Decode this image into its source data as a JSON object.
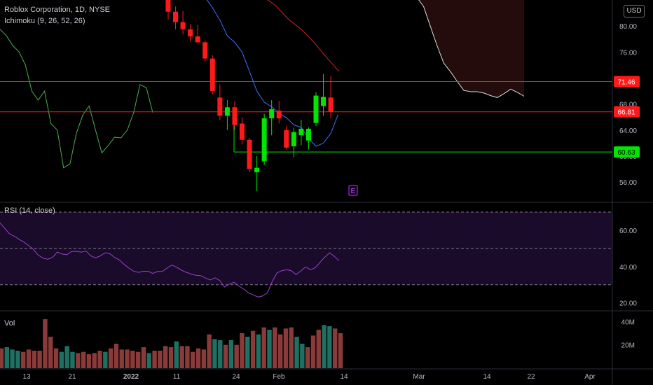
{
  "header": {
    "title": "Roblox Corporation, 1D, NYSE",
    "ichimoku": "Ichimoku (9, 26, 52, 26)",
    "currency": "USD"
  },
  "panes": {
    "rsi_label": "RSI (14, close)",
    "vol_label": "Vol"
  },
  "earnings_marker": "E",
  "colors": {
    "up": "#00e600",
    "down": "#ff1a1a",
    "vol_up": "#1e7063",
    "vol_down": "#8b3a3a",
    "rsi": "#9c3fd0",
    "lagging": "#4caf50",
    "conversion": "#3f6fff",
    "spanB": "#c62828",
    "spanA": "#dcdcdc"
  },
  "chart_data": {
    "type": "candlestick",
    "price_axis": {
      "ticks": [
        56,
        60,
        64,
        68,
        76,
        80
      ],
      "tick_labels": [
        "56.00",
        "60.00",
        "64.00",
        "68.00",
        "76.00",
        "80.00"
      ],
      "ylim": [
        53,
        84
      ]
    },
    "price_labels": [
      {
        "value": 71.46,
        "label": "71.46",
        "color": "#ff1a1a"
      },
      {
        "value": 66.81,
        "label": "66.81",
        "color": "#ff1a1a"
      },
      {
        "value": 60.63,
        "label": "60.63",
        "color": "#00e600"
      }
    ],
    "x_axis_labels": [
      "13",
      "21",
      "2022",
      "11",
      "24",
      "Feb",
      "14",
      "Mar",
      "14",
      "22",
      "Apr"
    ],
    "candles": [
      {
        "o": 84,
        "h": 87,
        "l": 81,
        "c": 82.2
      },
      {
        "o": 82.2,
        "h": 83,
        "l": 79.5,
        "c": 80.6
      },
      {
        "o": 80.6,
        "h": 82.3,
        "l": 78.7,
        "c": 79.5
      },
      {
        "o": 79.5,
        "h": 80.3,
        "l": 77.6,
        "c": 78.4
      },
      {
        "o": 78.4,
        "h": 80.2,
        "l": 77.4,
        "c": 77.5
      },
      {
        "o": 77.5,
        "h": 77.8,
        "l": 74.5,
        "c": 75
      },
      {
        "o": 75,
        "h": 75.5,
        "l": 69.5,
        "c": 70
      },
      {
        "o": 69,
        "h": 71,
        "l": 65.5,
        "c": 66.2
      },
      {
        "o": 66.2,
        "h": 68.6,
        "l": 64,
        "c": 67.5
      },
      {
        "o": 67.5,
        "h": 68.4,
        "l": 64,
        "c": 64.8
      },
      {
        "o": 65,
        "h": 66,
        "l": 61.8,
        "c": 62.5
      },
      {
        "o": 62.5,
        "h": 62.8,
        "l": 57.5,
        "c": 58
      },
      {
        "o": 57.5,
        "h": 60,
        "l": 54.6,
        "c": 58.2
      },
      {
        "o": 59.2,
        "h": 66.5,
        "l": 58.6,
        "c": 65.8
      },
      {
        "o": 65.8,
        "h": 68.6,
        "l": 63.2,
        "c": 67.2
      },
      {
        "o": 67,
        "h": 68.5,
        "l": 65,
        "c": 65.8
      },
      {
        "o": 64,
        "h": 64.6,
        "l": 61,
        "c": 61.3
      },
      {
        "o": 61.5,
        "h": 64.3,
        "l": 59.8,
        "c": 63.7
      },
      {
        "o": 63.2,
        "h": 65.6,
        "l": 61.7,
        "c": 64.2
      },
      {
        "o": 62.4,
        "h": 64.4,
        "l": 61,
        "c": 64.2
      },
      {
        "o": 65.1,
        "h": 69.8,
        "l": 64.6,
        "c": 69.3
      },
      {
        "o": 67.7,
        "h": 72.6,
        "l": 66.2,
        "c": 69.1
      },
      {
        "o": 69,
        "h": 72.3,
        "l": 65.8,
        "c": 66.8
      }
    ],
    "ichimoku": {
      "lagging_span": [
        79.5,
        78.5,
        77,
        76,
        74,
        70,
        68.6,
        70,
        65,
        64,
        58.2,
        58.8,
        63.5,
        66.3,
        67.7,
        64,
        60.5,
        61.6,
        62.9,
        62.8,
        64,
        66.7,
        71,
        70.5,
        66.7
      ],
      "conversion_line": [
        null,
        null,
        null,
        null,
        null,
        84.4,
        82.8,
        80.9,
        78.5,
        77.5,
        76,
        73,
        70,
        68.3,
        67.6,
        66.6,
        65.9,
        64.8,
        64.4,
        62.7,
        61.5,
        62,
        63.5,
        66.4
      ],
      "span_b_red": [
        84.5,
        83.1,
        81,
        79.5,
        77.5,
        75.2,
        73
      ],
      "span_a_forward": [
        84.4,
        83,
        80,
        77,
        74.3,
        73,
        71.5,
        70.1,
        69.9,
        69.9,
        69.7,
        69.3,
        69,
        69.6,
        70.3,
        69.8,
        69.2
      ]
    },
    "rsi": {
      "values": [
        64,
        61,
        58,
        56.7,
        55,
        53.5,
        51.5,
        49.4,
        46.3,
        44.6,
        44,
        45,
        48,
        46.9,
        46.5,
        48.3,
        48.4,
        47.9,
        48.6,
        45.9,
        44.8,
        45.9,
        47.6,
        47.1,
        45,
        43.6,
        41.2,
        39.1,
        37.4,
        36.8,
        37.4,
        37.4,
        36.2,
        37.3,
        37.3,
        39.2,
        40.8,
        39.6,
        38,
        36.8,
        35.9,
        35.2,
        35,
        33.7,
        32.6,
        33.8,
        32.3,
        28.7,
        30.4,
        31.3,
        29.3,
        27.6,
        25.5,
        24.4,
        23.2,
        23.8,
        25.5,
        31.8,
        36.5,
        37.7,
        38.2,
        37.7,
        35.5,
        37.6,
        39.8,
        38.3,
        39.3,
        42.3,
        45.2,
        47.6,
        45.6,
        43.1
      ],
      "levels": [
        70,
        50,
        30
      ],
      "tick_labels": [
        "20.00",
        "40.00",
        "60.00"
      ],
      "ylim": [
        16,
        75
      ]
    },
    "volume": {
      "values": [
        17,
        18,
        16,
        15,
        14,
        16,
        15,
        15,
        42,
        27,
        17,
        14,
        19,
        14,
        13,
        14,
        12,
        13,
        15,
        14,
        17,
        21,
        16,
        16,
        15,
        14,
        18,
        13,
        15,
        15,
        19,
        18,
        23,
        19,
        19,
        14,
        17,
        16,
        29,
        25,
        24,
        20,
        24,
        20,
        30,
        27,
        32,
        29,
        35,
        33,
        35,
        29,
        34,
        35,
        27,
        21,
        18,
        28,
        33,
        37,
        36,
        34,
        30
      ],
      "up_flags": [
        0,
        1,
        1,
        1,
        0,
        0,
        0,
        0,
        0,
        0,
        0,
        1,
        1,
        1,
        0,
        0,
        0,
        0,
        0,
        1,
        0,
        0,
        0,
        0,
        0,
        0,
        0,
        1,
        0,
        0,
        0,
        0,
        1,
        0,
        0,
        0,
        0,
        0,
        0,
        1,
        1,
        0,
        1,
        0,
        0,
        1,
        0,
        1,
        0,
        1,
        0,
        0,
        0,
        0,
        1,
        1,
        0,
        0,
        0,
        1,
        1,
        0,
        0
      ],
      "tick_labels": [
        "20M",
        "40M"
      ],
      "ylim": [
        0,
        48
      ]
    }
  }
}
